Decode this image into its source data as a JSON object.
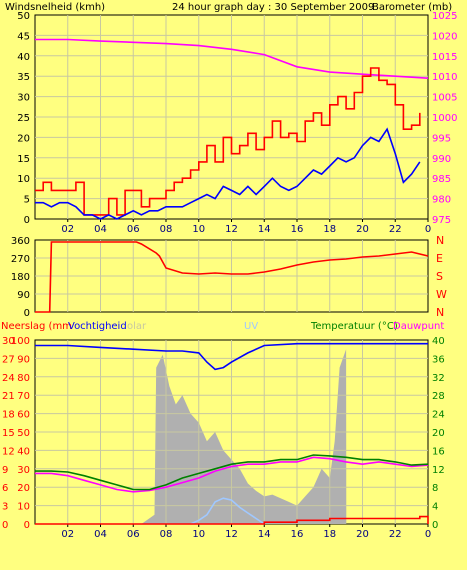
{
  "colors": {
    "background": "#ffff80",
    "wind": "#ff0000",
    "wind_avg": "#0000ff",
    "barometer": "#ff00ff",
    "direction": "#ff0000",
    "rain": "#ff0000",
    "humidity": "#0000ff",
    "temperature": "#008000",
    "dewpoint": "#ff00ff",
    "solar": "#b0b0b0",
    "uv": "#a0c8ff",
    "axis_text": "#000080"
  },
  "chart_data": [
    {
      "type": "line",
      "title": "24 hour graph day : 30 September 2009",
      "ylabel_left": "Windsnelheid (kmh)",
      "ylabel_right": "Barometer (mb)",
      "x_ticks": [
        "02",
        "04",
        "06",
        "08",
        "10",
        "12",
        "14",
        "16",
        "18",
        "20",
        "22",
        "0"
      ],
      "ylim_left": [
        0,
        50
      ],
      "yticks_left": [
        "0",
        "5",
        "10",
        "15",
        "20",
        "25",
        "30",
        "35",
        "40",
        "45",
        "50"
      ],
      "ylim_right": [
        975,
        1025
      ],
      "yticks_right": [
        "975",
        "980",
        "985",
        "990",
        "995",
        "1000",
        "1005",
        "1010",
        "1015",
        "1020",
        "1025"
      ],
      "grid": true,
      "series": [
        {
          "key": "gust",
          "axis": "left",
          "x": [
            0,
            0.5,
            1,
            1.5,
            2,
            2.5,
            3,
            3.5,
            4,
            4.5,
            5,
            5.5,
            6,
            6.5,
            7,
            7.5,
            8,
            8.5,
            9,
            9.5,
            10,
            10.5,
            11,
            11.5,
            12,
            12.5,
            13,
            13.5,
            14,
            14.5,
            15,
            15.5,
            16,
            16.5,
            17,
            17.5,
            18,
            18.5,
            19,
            19.5,
            20,
            20.5,
            21,
            21.5,
            22,
            22.5,
            23,
            23.5
          ],
          "values": [
            7,
            9,
            7,
            7,
            7,
            9,
            1,
            1,
            1,
            5,
            1,
            7,
            7,
            3,
            5,
            5,
            7,
            9,
            10,
            12,
            14,
            18,
            14,
            20,
            16,
            18,
            21,
            17,
            20,
            24,
            20,
            21,
            19,
            24,
            26,
            23,
            28,
            30,
            27,
            31,
            35,
            37,
            34,
            33,
            28,
            22,
            23,
            26
          ]
        },
        {
          "key": "wind",
          "axis": "left",
          "x": [
            0,
            0.5,
            1,
            1.5,
            2,
            2.5,
            3,
            3.5,
            4,
            4.5,
            5,
            5.5,
            6,
            6.5,
            7,
            7.5,
            8,
            8.5,
            9,
            9.5,
            10,
            10.5,
            11,
            11.5,
            12,
            12.5,
            13,
            13.5,
            14,
            14.5,
            15,
            15.5,
            16,
            16.5,
            17,
            17.5,
            18,
            18.5,
            19,
            19.5,
            20,
            20.5,
            21,
            21.5,
            22,
            22.5,
            23,
            23.5
          ],
          "values": [
            4,
            4,
            3,
            4,
            4,
            3,
            1,
            1,
            0,
            1,
            0,
            1,
            2,
            1,
            2,
            2,
            3,
            3,
            3,
            4,
            5,
            6,
            5,
            8,
            7,
            6,
            8,
            6,
            8,
            10,
            8,
            7,
            8,
            10,
            12,
            11,
            13,
            15,
            14,
            15,
            18,
            20,
            19,
            22,
            16,
            9,
            11,
            14
          ]
        },
        {
          "key": "barometer",
          "axis": "right",
          "x": [
            0,
            2,
            4,
            6,
            8,
            10,
            12,
            14,
            16,
            18,
            20,
            22,
            24
          ],
          "values": [
            1019,
            1019,
            1018.6,
            1018.3,
            1018,
            1017.5,
            1016.6,
            1015.3,
            1012.3,
            1011,
            1010.5,
            1010,
            1009.5
          ]
        }
      ]
    },
    {
      "type": "line",
      "title": "",
      "ylim": [
        0,
        360
      ],
      "yticks": [
        "0",
        "90",
        "180",
        "270",
        "360"
      ],
      "ylabel_right_letters": [
        "N",
        "W",
        "S",
        "E",
        "N"
      ],
      "grid": true,
      "series": [
        {
          "key": "direction",
          "x": [
            0,
            0.9,
            1,
            1.1,
            6.2,
            6.5,
            7.4,
            7.6,
            8,
            9,
            10,
            11,
            12,
            13,
            14,
            15,
            16,
            17,
            18,
            19,
            20,
            21,
            22,
            23,
            24
          ],
          "values": [
            0,
            0,
            350,
            350,
            350,
            340,
            295,
            280,
            220,
            195,
            190,
            195,
            190,
            190,
            200,
            215,
            235,
            250,
            260,
            265,
            275,
            280,
            290,
            300,
            280
          ]
        }
      ]
    },
    {
      "type": "line",
      "legend": [
        "Neerslag (mm",
        "Vochtigheid",
        "olar",
        "UV",
        "Temperatuur (°C)",
        "Dauwpunt"
      ],
      "ylim_left": [
        0,
        100
      ],
      "yticks_left": [
        "0",
        "10",
        "20",
        "30",
        "40",
        "50",
        "60",
        "70",
        "80",
        "90",
        "100"
      ],
      "yticks_left2": [
        "0",
        "3",
        "6",
        "9",
        "12",
        "15",
        "18",
        "21",
        "24",
        "27",
        "30"
      ],
      "ylim_right": [
        0,
        40
      ],
      "yticks_right": [
        "0",
        "4",
        "8",
        "12",
        "16",
        "20",
        "24",
        "28",
        "32",
        "36",
        "40"
      ],
      "grid": true,
      "series": [
        {
          "key": "humidity",
          "axis": "left",
          "x": [
            0,
            2,
            4,
            6,
            8,
            9,
            10,
            10.5,
            11,
            11.5,
            12,
            13,
            14,
            16,
            18,
            20,
            22,
            24
          ],
          "values": [
            97,
            97,
            96,
            95,
            94,
            94,
            93,
            88,
            84,
            85,
            88,
            93,
            97,
            98,
            98,
            98,
            98,
            98
          ]
        },
        {
          "key": "temperature",
          "axis": "right",
          "x": [
            0,
            1,
            2,
            3,
            4,
            5,
            6,
            7,
            8,
            9,
            10,
            11,
            12,
            13,
            14,
            15,
            16,
            17,
            18,
            19,
            20,
            21,
            22,
            23,
            24
          ],
          "values": [
            11.5,
            11.5,
            11.3,
            10.5,
            9.5,
            8.5,
            7.5,
            7.5,
            8.5,
            10,
            11,
            12,
            13,
            13.5,
            13.5,
            14,
            14,
            15,
            14.8,
            14.5,
            14,
            14,
            13.5,
            12.8,
            13
          ]
        },
        {
          "key": "dewpoint",
          "axis": "right",
          "x": [
            0,
            1,
            2,
            3,
            4,
            5,
            6,
            7,
            8,
            9,
            10,
            11,
            12,
            13,
            14,
            15,
            16,
            17,
            18,
            19,
            20,
            21,
            22,
            23,
            24
          ],
          "values": [
            11,
            11,
            10.5,
            9.5,
            8.5,
            7.5,
            7,
            7.3,
            8,
            9,
            10,
            11.5,
            12.5,
            13,
            13,
            13.5,
            13.5,
            14.5,
            14.2,
            13.5,
            13,
            13.5,
            13,
            12.5,
            12.8
          ]
        },
        {
          "key": "solar",
          "axis": "left",
          "x": [
            6.5,
            7.3,
            7.4,
            7.8,
            8.2,
            8.6,
            9,
            9.5,
            10,
            10.5,
            11,
            11.5,
            12,
            12.5,
            13,
            13.5,
            14,
            14.5,
            15,
            15.5,
            16,
            16.5,
            17,
            17.5,
            18,
            18.3,
            18.6,
            19,
            19.01
          ],
          "values": [
            0,
            5,
            85,
            92,
            75,
            65,
            70,
            60,
            55,
            45,
            50,
            40,
            35,
            30,
            22,
            18,
            15,
            16,
            14,
            12,
            10,
            15,
            20,
            30,
            25,
            45,
            85,
            95,
            0
          ]
        },
        {
          "key": "uv",
          "axis": "left",
          "x": [
            9.5,
            10,
            10.5,
            11,
            11.5,
            12,
            12.5,
            13,
            13.5,
            14
          ],
          "values": [
            0,
            2,
            5,
            12,
            14,
            13,
            9,
            6,
            3,
            0
          ]
        },
        {
          "key": "rain",
          "axis": "left",
          "x": [
            0,
            12,
            14,
            16,
            18,
            20,
            22,
            23.5,
            23.7,
            24
          ],
          "values": [
            0,
            0,
            1,
            2,
            3,
            3,
            3,
            4,
            4,
            0
          ]
        }
      ]
    }
  ]
}
